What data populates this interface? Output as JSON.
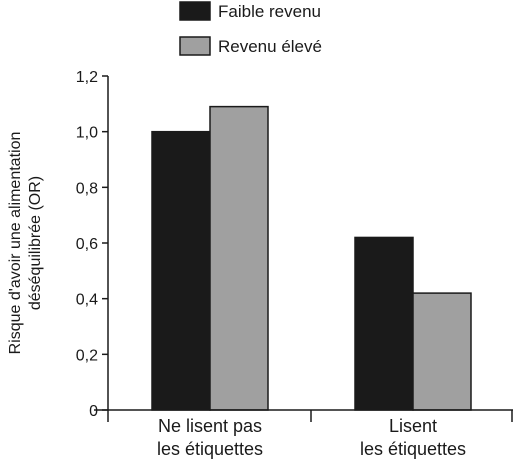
{
  "chart_data": {
    "type": "bar",
    "categories": [
      [
        "Ne lisent pas",
        "les étiquettes"
      ],
      [
        "Lisent",
        "les étiquettes"
      ]
    ],
    "series": [
      {
        "name": "Faible revenu",
        "values": [
          1.0,
          0.62
        ],
        "color": "#1a1a1a"
      },
      {
        "name": "Revenu élevé",
        "values": [
          1.09,
          0.42
        ],
        "color": "#a0a0a0"
      }
    ],
    "ylabel": [
      "Risque d'avoir une alimentation",
      "déséquilibrée (OR)"
    ],
    "yticks": [
      "0",
      "0,2",
      "0,4",
      "0,6",
      "0,8",
      "1,0",
      "1,2"
    ],
    "ylim": [
      0,
      1.2
    ],
    "legend_position": "top",
    "grid": false
  }
}
